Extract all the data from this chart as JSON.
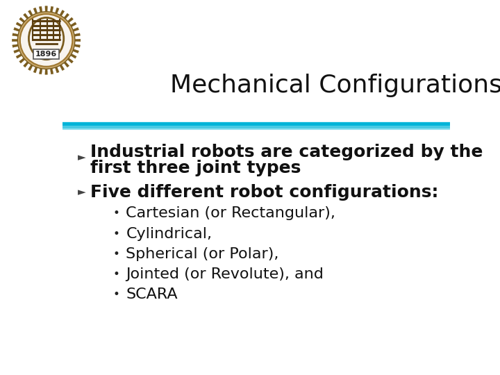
{
  "title": "Mechanical Configurations",
  "title_fontsize": 26,
  "title_color": "#111111",
  "bg_color": "#ffffff",
  "bullet1_line1": "Industrial robots are categorized by the",
  "bullet1_line2": "first three joint types",
  "bullet2": "Five different robot configurations:",
  "sub_bullets": [
    "Cartesian (or Rectangular),",
    "Cylindrical,",
    "Spherical (or Polar),",
    "Jointed (or Revolute), and",
    "SCARA"
  ],
  "bullet_fontsize": 18,
  "sub_bullet_fontsize": 16,
  "bullet_color": "#111111",
  "sub_bullet_color": "#111111",
  "sep_line1_color": "#00b4d8",
  "sep_line2_color": "#48cae4",
  "sep_line3_color": "#90e0ef"
}
